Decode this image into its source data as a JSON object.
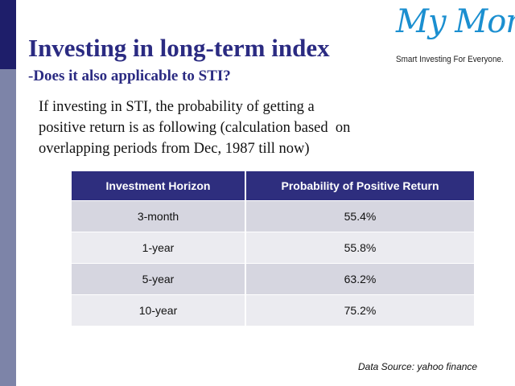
{
  "header": {
    "title": "Investing in long-term index",
    "subtitle": "-Does it also applicable to STI?"
  },
  "logo": {
    "brand": "My Money",
    "tagline": "Smart Investing For Everyone."
  },
  "body": {
    "lines": [
      "If investing in STI, the probability of getting a",
      "positive return is as following (calculation based  on",
      "overlapping periods from Dec, 1987 till now)"
    ]
  },
  "table": {
    "columns": [
      "Investment Horizon",
      "Probability of Positive Return"
    ],
    "rows": [
      [
        "3-month",
        "55.4%"
      ],
      [
        "1-year",
        "55.8%"
      ],
      [
        "5-year",
        "63.2%"
      ],
      [
        "10-year",
        "75.2%"
      ]
    ]
  },
  "footer": {
    "source": "Data Source: yahoo finance"
  }
}
